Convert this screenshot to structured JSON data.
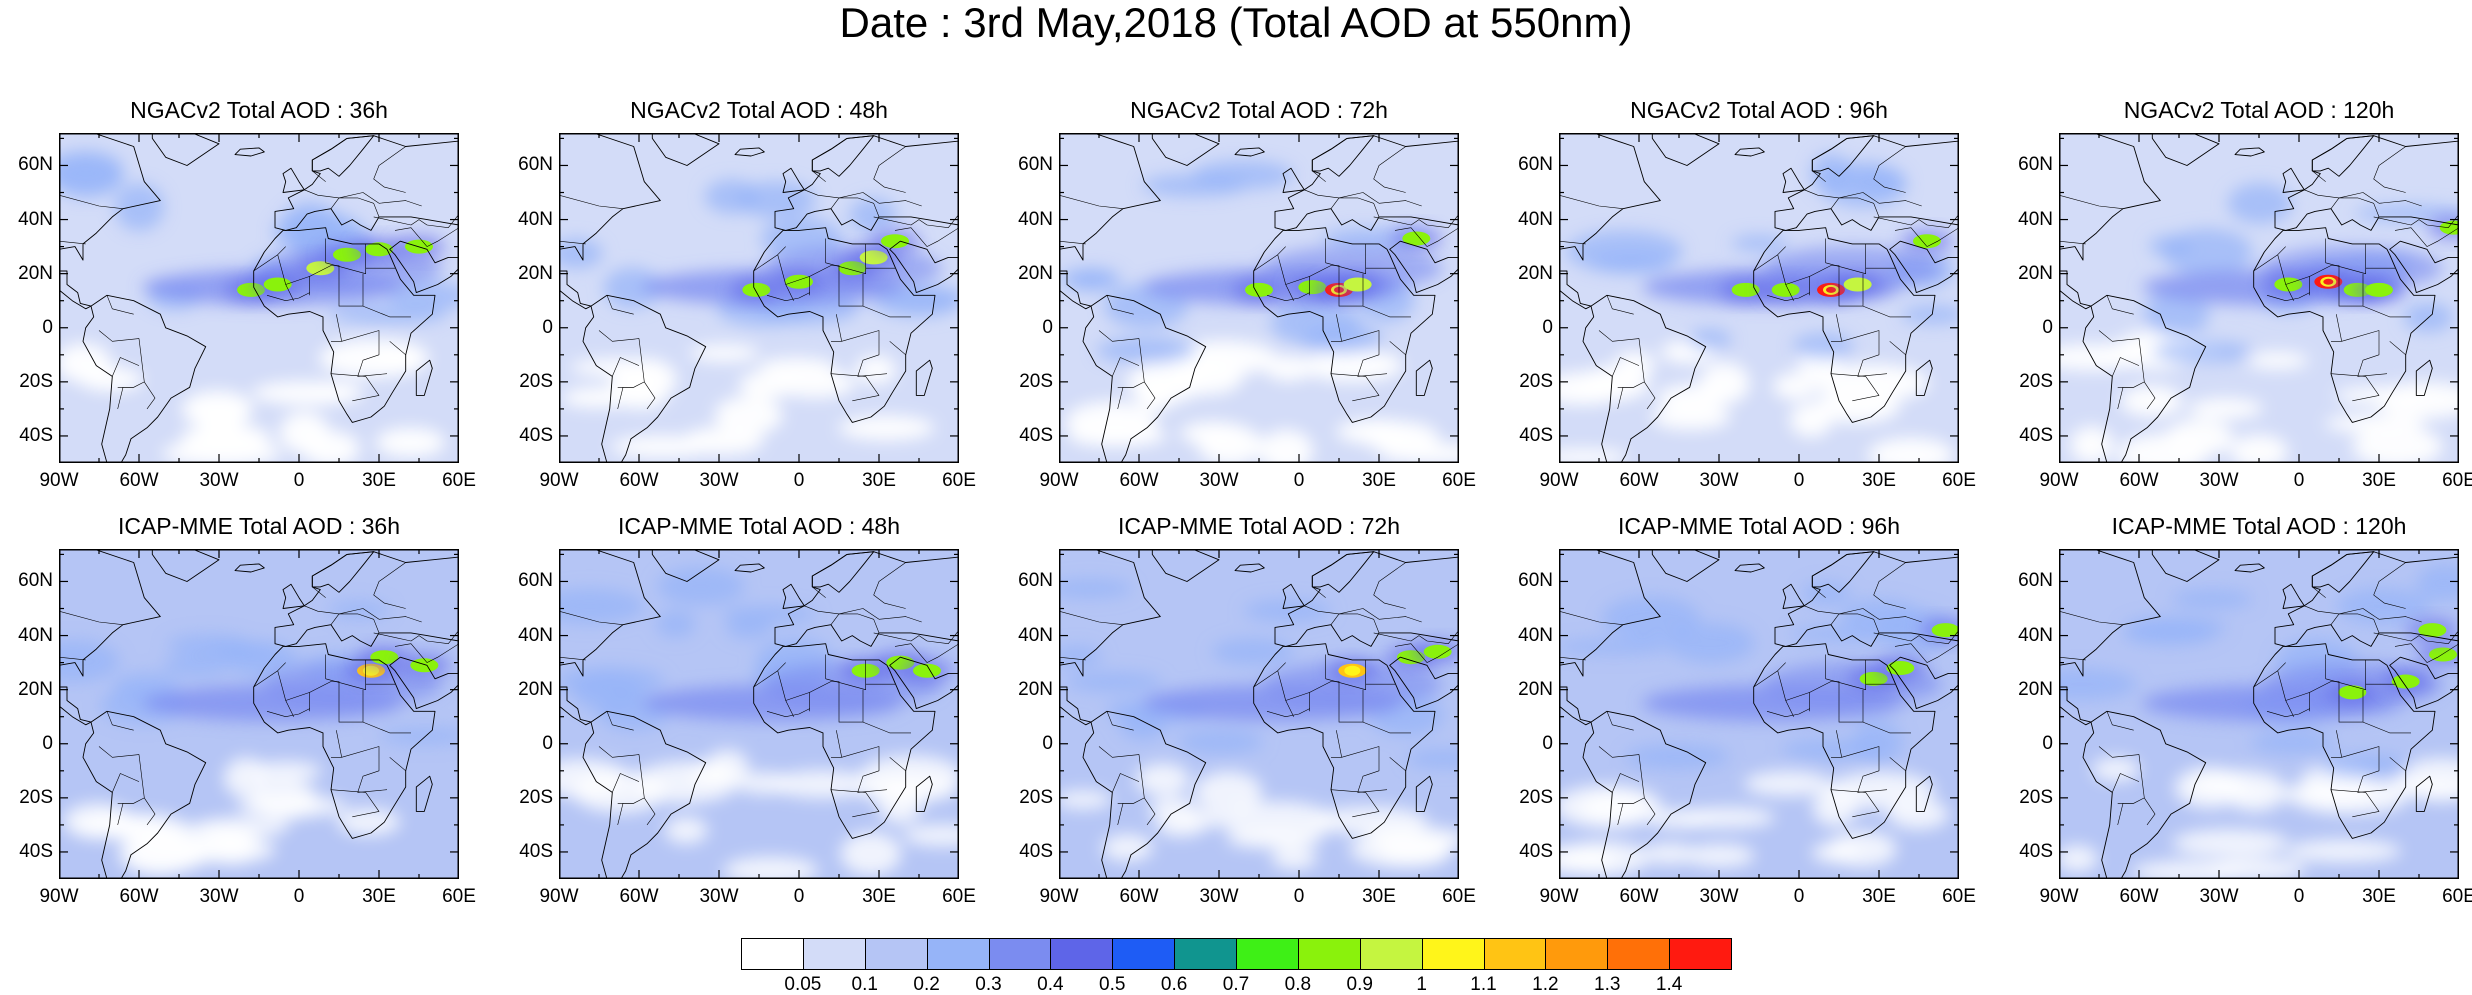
{
  "title": "Date : 3rd May,2018 (Total AOD at 550nm)",
  "lat_labels": [
    "60N",
    "40N",
    "20N",
    "0",
    "20S",
    "40S"
  ],
  "lon_labels": [
    "90W",
    "60W",
    "30W",
    "0",
    "30E",
    "60E"
  ],
  "panels": [
    {
      "title": "NGACv2 Total AOD : 36h",
      "model": "NGACv2",
      "lead": "36h",
      "plumes": [
        {
          "lon": -18,
          "lat": 14,
          "v": 0.8
        },
        {
          "lon": -8,
          "lat": 16,
          "v": 0.8
        },
        {
          "lon": 8,
          "lat": 22,
          "v": 0.9
        },
        {
          "lon": 18,
          "lat": 27,
          "v": 0.8
        },
        {
          "lon": 30,
          "lat": 29,
          "v": 0.8
        },
        {
          "lon": 45,
          "lat": 30,
          "v": 0.8
        }
      ]
    },
    {
      "title": "NGACv2 Total AOD : 48h",
      "model": "NGACv2",
      "lead": "48h",
      "plumes": [
        {
          "lon": -16,
          "lat": 14,
          "v": 0.8
        },
        {
          "lon": 0,
          "lat": 17,
          "v": 0.8
        },
        {
          "lon": 20,
          "lat": 22,
          "v": 0.8
        },
        {
          "lon": 28,
          "lat": 26,
          "v": 0.9
        },
        {
          "lon": 36,
          "lat": 32,
          "v": 0.8
        }
      ]
    },
    {
      "title": "NGACv2 Total AOD : 72h",
      "model": "NGACv2",
      "lead": "72h",
      "plumes": [
        {
          "lon": -15,
          "lat": 14,
          "v": 0.8
        },
        {
          "lon": 5,
          "lat": 15,
          "v": 0.8
        },
        {
          "lon": 15,
          "lat": 14,
          "v": 1.4
        },
        {
          "lon": 22,
          "lat": 16,
          "v": 0.9
        },
        {
          "lon": 44,
          "lat": 33,
          "v": 0.8
        }
      ]
    },
    {
      "title": "NGACv2 Total AOD : 96h",
      "model": "NGACv2",
      "lead": "96h",
      "plumes": [
        {
          "lon": -20,
          "lat": 14,
          "v": 0.8
        },
        {
          "lon": -5,
          "lat": 14,
          "v": 0.8
        },
        {
          "lon": 12,
          "lat": 14,
          "v": 1.4
        },
        {
          "lon": 22,
          "lat": 16,
          "v": 0.9
        },
        {
          "lon": 48,
          "lat": 32,
          "v": 0.8
        }
      ]
    },
    {
      "title": "NGACv2 Total AOD : 120h",
      "model": "NGACv2",
      "lead": "120h",
      "plumes": [
        {
          "lon": -4,
          "lat": 16,
          "v": 0.8
        },
        {
          "lon": 11,
          "lat": 17,
          "v": 1.4
        },
        {
          "lon": 22,
          "lat": 14,
          "v": 0.8
        },
        {
          "lon": 30,
          "lat": 14,
          "v": 0.8
        },
        {
          "lon": 58,
          "lat": 37,
          "v": 0.8
        }
      ]
    },
    {
      "title": "ICAP-MME Total AOD : 36h",
      "model": "ICAP-MME",
      "lead": "36h",
      "plumes": [
        {
          "lon": 27,
          "lat": 27,
          "v": 1.1
        },
        {
          "lon": 32,
          "lat": 32,
          "v": 0.8
        },
        {
          "lon": 47,
          "lat": 29,
          "v": 0.8
        }
      ]
    },
    {
      "title": "ICAP-MME Total AOD : 48h",
      "model": "ICAP-MME",
      "lead": "48h",
      "plumes": [
        {
          "lon": 25,
          "lat": 27,
          "v": 0.8
        },
        {
          "lon": 38,
          "lat": 30,
          "v": 0.8
        },
        {
          "lon": 48,
          "lat": 27,
          "v": 0.8
        }
      ]
    },
    {
      "title": "ICAP-MME Total AOD : 72h",
      "model": "ICAP-MME",
      "lead": "72h",
      "plumes": [
        {
          "lon": 20,
          "lat": 27,
          "v": 1.1
        },
        {
          "lon": 42,
          "lat": 32,
          "v": 0.8
        },
        {
          "lon": 52,
          "lat": 34,
          "v": 0.8
        }
      ]
    },
    {
      "title": "ICAP-MME Total AOD : 96h",
      "model": "ICAP-MME",
      "lead": "96h",
      "plumes": [
        {
          "lon": 28,
          "lat": 24,
          "v": 0.8
        },
        {
          "lon": 38,
          "lat": 28,
          "v": 0.8
        },
        {
          "lon": 55,
          "lat": 42,
          "v": 0.8
        }
      ]
    },
    {
      "title": "ICAP-MME Total AOD : 120h",
      "model": "ICAP-MME",
      "lead": "120h",
      "plumes": [
        {
          "lon": 20,
          "lat": 19,
          "v": 0.8
        },
        {
          "lon": 40,
          "lat": 23,
          "v": 0.8
        },
        {
          "lon": 54,
          "lat": 33,
          "v": 0.8
        },
        {
          "lon": 50,
          "lat": 42,
          "v": 0.8
        }
      ]
    }
  ],
  "colorbar": {
    "labels": [
      "0.05",
      "0.1",
      "0.2",
      "0.3",
      "0.4",
      "0.5",
      "0.6",
      "0.7",
      "0.8",
      "0.9",
      "1",
      "1.1",
      "1.2",
      "1.3",
      "1.4"
    ],
    "colors": [
      "#ffffff",
      "#d3dcf8",
      "#b5c5f5",
      "#96b4f8",
      "#7b8cf0",
      "#5e65e8",
      "#1e5cf5",
      "#10958f",
      "#3ef016",
      "#8af20c",
      "#c5f540",
      "#fff51a",
      "#ffc414",
      "#ff9a0c",
      "#ff7008",
      "#ff1a10"
    ]
  }
}
